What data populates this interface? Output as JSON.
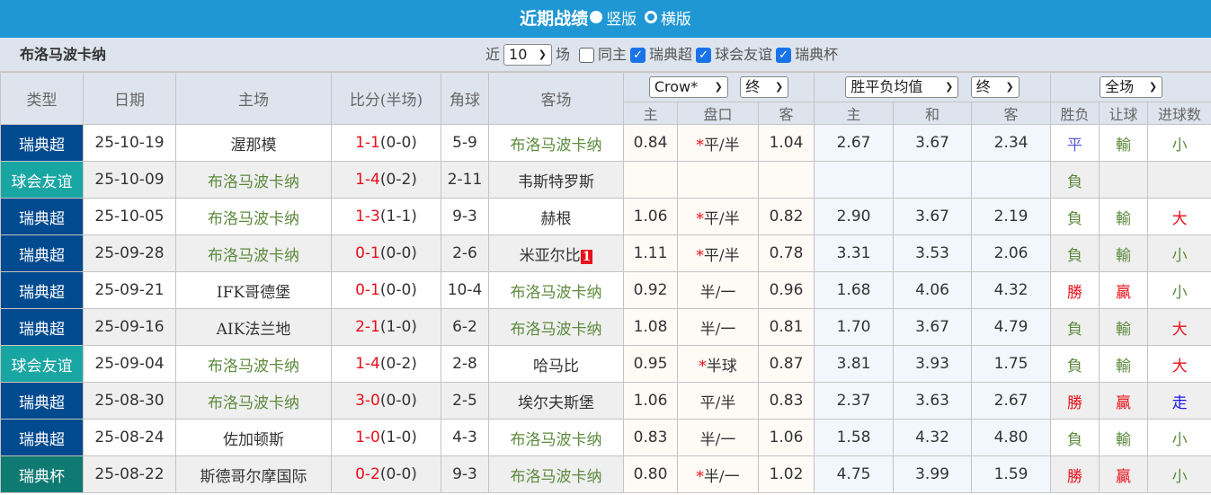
{
  "header": {
    "title": "近期战绩",
    "option_vertical": "竖版",
    "option_horizontal": "横版",
    "selected": "竖版"
  },
  "filter": {
    "team": "布洛马波卡纳",
    "recent_prefix": "近",
    "recent_count": "10",
    "recent_suffix": "场",
    "same_home_label": "同主",
    "same_home_checked": false,
    "competitions": [
      {
        "label": "瑞典超",
        "checked": true
      },
      {
        "label": "球会友谊",
        "checked": true
      },
      {
        "label": "瑞典杯",
        "checked": true
      }
    ]
  },
  "columns": {
    "type": "类型",
    "date": "日期",
    "home": "主场",
    "score": "比分(半场)",
    "corner": "角球",
    "away": "客场",
    "handicap_company": "Crow*",
    "handicap_period": "终",
    "euro_type": "胜平负均值",
    "euro_period": "终",
    "result_scope": "全场",
    "sub": [
      "主",
      "盘口",
      "客",
      "主",
      "和",
      "客",
      "胜负",
      "让球",
      "进球数"
    ]
  },
  "colors": {
    "瑞典超": "#004a8f",
    "球会友谊": "#18a6a3",
    "瑞典杯": "#0f7a72",
    "win": "#e8101a",
    "lose": "#5c8a3c",
    "draw": "#5a5ad8",
    "push": "#1a1ae8"
  },
  "matches": [
    {
      "type": "瑞典超",
      "date": "25-10-19",
      "home": "渥那模",
      "ft": "1-1",
      "ht": "(0-0)",
      "corner": "5-9",
      "away": "布洛马波卡纳",
      "h_home": "0.84",
      "line": "平/半",
      "star": true,
      "h_away": "1.04",
      "e_home": "2.67",
      "e_draw": "3.67",
      "e_away": "2.34",
      "wl": "平",
      "ah": "輸",
      "ou": "小"
    },
    {
      "type": "球会友谊",
      "date": "25-10-09",
      "home": "布洛马波卡纳",
      "ft": "1-4",
      "ht": "(0-2)",
      "corner": "2-11",
      "away": "韦斯特罗斯",
      "h_home": "",
      "line": "",
      "star": false,
      "h_away": "",
      "e_home": "",
      "e_draw": "",
      "e_away": "",
      "wl": "負",
      "ah": "",
      "ou": ""
    },
    {
      "type": "瑞典超",
      "date": "25-10-05",
      "home": "布洛马波卡纳",
      "ft": "1-3",
      "ht": "(1-1)",
      "corner": "9-3",
      "away": "赫根",
      "h_home": "1.06",
      "line": "平/半",
      "star": true,
      "h_away": "0.82",
      "e_home": "2.90",
      "e_draw": "3.67",
      "e_away": "2.19",
      "wl": "負",
      "ah": "輸",
      "ou": "大"
    },
    {
      "type": "瑞典超",
      "date": "25-09-28",
      "home": "布洛马波卡纳",
      "ft": "0-1",
      "ht": "(0-0)",
      "corner": "2-6",
      "away": "米亚尔比",
      "away_badge": "1",
      "h_home": "1.11",
      "line": "平/半",
      "star": true,
      "h_away": "0.78",
      "e_home": "3.31",
      "e_draw": "3.53",
      "e_away": "2.06",
      "wl": "負",
      "ah": "輸",
      "ou": "小"
    },
    {
      "type": "瑞典超",
      "date": "25-09-21",
      "home": "IFK哥德堡",
      "ft": "0-1",
      "ht": "(0-0)",
      "corner": "10-4",
      "away": "布洛马波卡纳",
      "h_home": "0.92",
      "line": "半/一",
      "star": false,
      "h_away": "0.96",
      "e_home": "1.68",
      "e_draw": "4.06",
      "e_away": "4.32",
      "wl": "勝",
      "ah": "贏",
      "ou": "小"
    },
    {
      "type": "瑞典超",
      "date": "25-09-16",
      "home": "AIK法兰地",
      "ft": "2-1",
      "ht": "(1-0)",
      "corner": "6-2",
      "away": "布洛马波卡纳",
      "h_home": "1.08",
      "line": "半/一",
      "star": false,
      "h_away": "0.81",
      "e_home": "1.70",
      "e_draw": "3.67",
      "e_away": "4.79",
      "wl": "負",
      "ah": "輸",
      "ou": "大"
    },
    {
      "type": "球会友谊",
      "date": "25-09-04",
      "home": "布洛马波卡纳",
      "ft": "1-4",
      "ht": "(0-2)",
      "corner": "2-8",
      "away": "哈马比",
      "h_home": "0.95",
      "line": "半球",
      "star": true,
      "h_away": "0.87",
      "e_home": "3.81",
      "e_draw": "3.93",
      "e_away": "1.75",
      "wl": "負",
      "ah": "輸",
      "ou": "大"
    },
    {
      "type": "瑞典超",
      "date": "25-08-30",
      "home": "布洛马波卡纳",
      "ft": "3-0",
      "ht": "(0-0)",
      "corner": "2-5",
      "away": "埃尔夫斯堡",
      "h_home": "1.06",
      "line": "平/半",
      "star": false,
      "h_away": "0.83",
      "e_home": "2.37",
      "e_draw": "3.63",
      "e_away": "2.67",
      "wl": "勝",
      "ah": "贏",
      "ou": "走"
    },
    {
      "type": "瑞典超",
      "date": "25-08-24",
      "home": "佐加顿斯",
      "ft": "1-0",
      "ht": "(1-0)",
      "corner": "4-3",
      "away": "布洛马波卡纳",
      "h_home": "0.83",
      "line": "半/一",
      "star": false,
      "h_away": "1.06",
      "e_home": "1.58",
      "e_draw": "4.32",
      "e_away": "4.80",
      "wl": "負",
      "ah": "輸",
      "ou": "小"
    },
    {
      "type": "瑞典杯",
      "date": "25-08-22",
      "home": "斯德哥尔摩国际",
      "ft": "0-2",
      "ht": "(0-0)",
      "corner": "9-3",
      "away": "布洛马波卡纳",
      "h_home": "0.80",
      "line": "半/一",
      "star": true,
      "h_away": "1.02",
      "e_home": "4.75",
      "e_draw": "3.99",
      "e_away": "1.59",
      "wl": "勝",
      "ah": "贏",
      "ou": "小"
    }
  ]
}
